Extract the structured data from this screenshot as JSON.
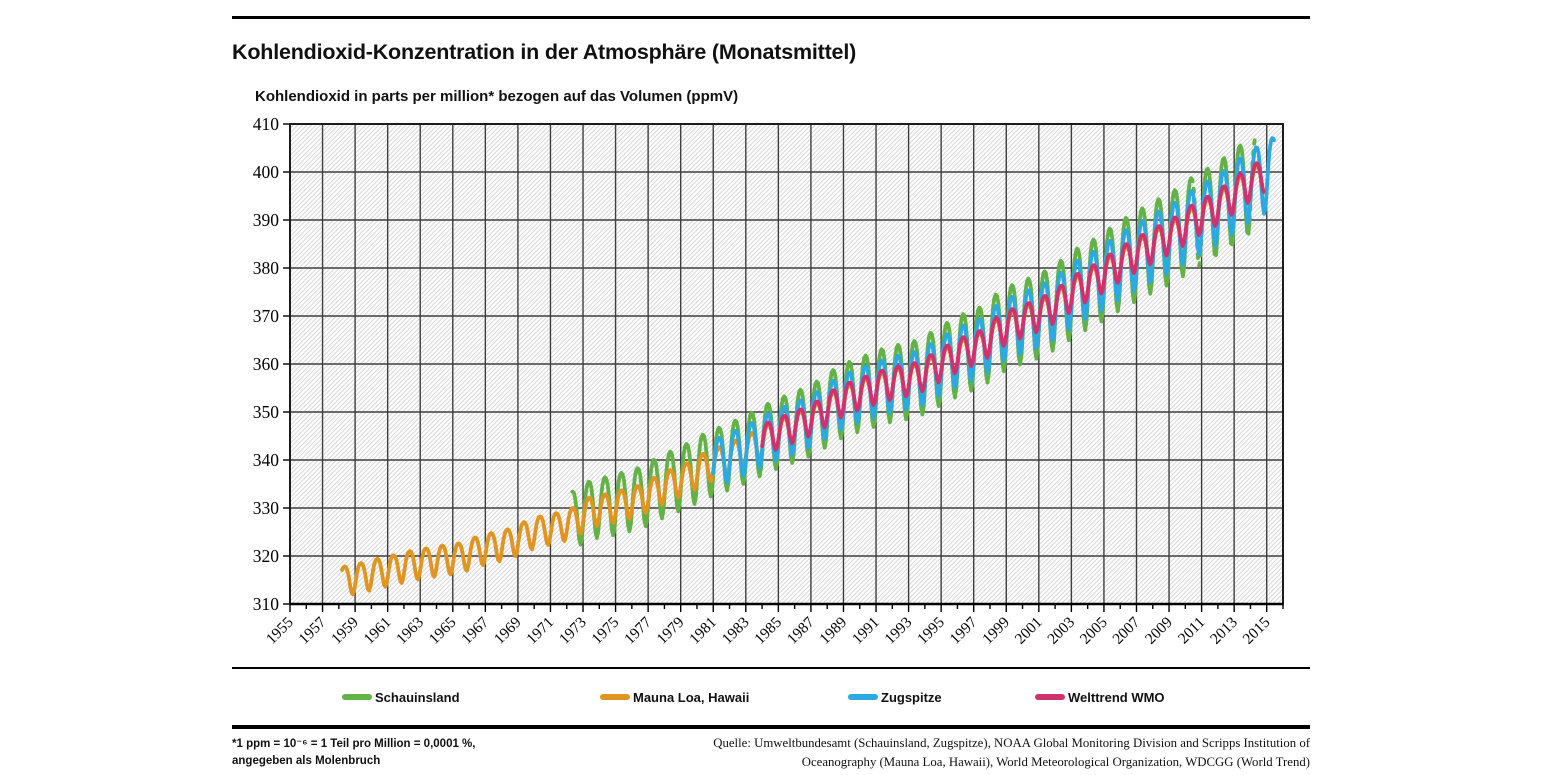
{
  "page": {
    "title": "Kohlendioxid-Konzentration in der Atmosphäre (Monatsmittel)",
    "subtitle": "Kohlendioxid in parts per million* bezogen auf das Volumen (ppmV)",
    "footnote_line1": "*1 ppm = 10⁻⁶ = 1 Teil pro Million = 0,0001 %,",
    "footnote_line2": "angegeben als Molenbruch",
    "source_line1": "Quelle: Umweltbundesamt (Schauinsland, Zugspitze), NOAA Global Monitoring Division and Scripps Institution of",
    "source_line2": "Oceanography  (Mauna Loa, Hawaii), World Meteorological Organization, WDCGG (World Trend)"
  },
  "chart_data": {
    "type": "line",
    "title": "Kohlendioxid-Konzentration in der Atmosphäre (Monatsmittel)",
    "ylabel": "Kohlendioxid in parts per million* bezogen auf das Volumen (ppmV)",
    "xlabel": "",
    "ylim": [
      310,
      410
    ],
    "xlim": [
      1955,
      2016
    ],
    "yticks": [
      310,
      320,
      330,
      340,
      350,
      360,
      370,
      380,
      390,
      400,
      410
    ],
    "xticks": [
      1955,
      1957,
      1959,
      1961,
      1963,
      1965,
      1967,
      1969,
      1971,
      1973,
      1975,
      1977,
      1979,
      1981,
      1983,
      1985,
      1987,
      1989,
      1991,
      1993,
      1995,
      1997,
      1999,
      2001,
      2003,
      2005,
      2007,
      2009,
      2011,
      2013,
      2015
    ],
    "grid": "major gridlines both axes, hatched plot background",
    "legend_position": "bottom",
    "resolution": "monthly means; annual_mean values listed per calendar year, seasonal cycle peaks in spring and dips in autumn with seasonal_amplitude (half peak-to-trough, ppm) interpolated from first to last value",
    "series": [
      {
        "name": "Schauinsland",
        "color": "#63b245",
        "start": 1972.35,
        "end": 2014.4,
        "seasonal_amplitude": [
          6.0,
          10.0
        ],
        "dashed_gaps": [
          [
            2010.35,
            2011.05
          ],
          [
            2013.95,
            2014.4
          ]
        ],
        "annual_mean": [
          [
            1972,
            328.6
          ],
          [
            1973,
            330.6
          ],
          [
            1974,
            331.2
          ],
          [
            1975,
            332.1
          ],
          [
            1976,
            333.0
          ],
          [
            1977,
            334.8
          ],
          [
            1978,
            336.4
          ],
          [
            1979,
            337.9
          ],
          [
            1980,
            339.8
          ],
          [
            1981,
            341.1
          ],
          [
            1982,
            342.5
          ],
          [
            1983,
            344.1
          ],
          [
            1984,
            345.9
          ],
          [
            1985,
            347.3
          ],
          [
            1986,
            348.6
          ],
          [
            1987,
            350.3
          ],
          [
            1988,
            352.7
          ],
          [
            1989,
            354.2
          ],
          [
            1990,
            355.4
          ],
          [
            1991,
            356.6
          ],
          [
            1992,
            357.4
          ],
          [
            1993,
            358.1
          ],
          [
            1994,
            359.9
          ],
          [
            1995,
            361.9
          ],
          [
            1996,
            363.6
          ],
          [
            1997,
            364.8
          ],
          [
            1998,
            367.7
          ],
          [
            1999,
            369.4
          ],
          [
            2000,
            370.6
          ],
          [
            2001,
            372.1
          ],
          [
            2002,
            374.3
          ],
          [
            2003,
            376.8
          ],
          [
            2004,
            378.5
          ],
          [
            2005,
            380.8
          ],
          [
            2006,
            382.9
          ],
          [
            2007,
            384.8
          ],
          [
            2008,
            386.6
          ],
          [
            2009,
            388.4
          ],
          [
            2010,
            390.9
          ],
          [
            2011,
            392.7
          ],
          [
            2012,
            394.9
          ],
          [
            2013,
            397.5
          ],
          [
            2014,
            399.5
          ]
        ]
      },
      {
        "name": "Mauna Loa, Hawaii",
        "color": "#df951f",
        "start": 1958.2,
        "end": 2014.8,
        "seasonal_amplitude": [
          3.1,
          3.4
        ],
        "annual_mean": [
          [
            1958,
            315.3
          ],
          [
            1959,
            316.0
          ],
          [
            1960,
            316.9
          ],
          [
            1961,
            317.6
          ],
          [
            1962,
            318.5
          ],
          [
            1963,
            319.0
          ],
          [
            1964,
            319.6
          ],
          [
            1965,
            320.0
          ],
          [
            1966,
            321.4
          ],
          [
            1967,
            322.2
          ],
          [
            1968,
            323.0
          ],
          [
            1969,
            324.6
          ],
          [
            1970,
            325.7
          ],
          [
            1971,
            326.3
          ],
          [
            1972,
            327.5
          ],
          [
            1973,
            329.7
          ],
          [
            1974,
            330.2
          ],
          [
            1975,
            331.1
          ],
          [
            1976,
            332.0
          ],
          [
            1977,
            333.8
          ],
          [
            1978,
            335.4
          ],
          [
            1979,
            336.8
          ],
          [
            1980,
            338.8
          ],
          [
            1981,
            340.1
          ],
          [
            1982,
            341.5
          ],
          [
            1983,
            343.1
          ],
          [
            1984,
            344.9
          ],
          [
            1985,
            346.3
          ],
          [
            1986,
            347.6
          ],
          [
            1987,
            349.3
          ],
          [
            1988,
            351.7
          ],
          [
            1989,
            353.2
          ],
          [
            1990,
            354.4
          ],
          [
            1991,
            355.6
          ],
          [
            1992,
            356.4
          ],
          [
            1993,
            357.1
          ],
          [
            1994,
            358.9
          ],
          [
            1995,
            360.9
          ],
          [
            1996,
            362.6
          ],
          [
            1997,
            363.8
          ],
          [
            1998,
            366.7
          ],
          [
            1999,
            368.4
          ],
          [
            2000,
            369.6
          ],
          [
            2001,
            371.1
          ],
          [
            2002,
            373.3
          ],
          [
            2003,
            375.8
          ],
          [
            2004,
            377.5
          ],
          [
            2005,
            379.8
          ],
          [
            2006,
            381.9
          ],
          [
            2007,
            383.8
          ],
          [
            2008,
            385.6
          ],
          [
            2009,
            387.4
          ],
          [
            2010,
            389.9
          ],
          [
            2011,
            391.7
          ],
          [
            2012,
            393.9
          ],
          [
            2013,
            396.5
          ],
          [
            2014,
            398.7
          ]
        ]
      },
      {
        "name": "Zugspitze",
        "color": "#2ca9e1",
        "start": 1981.0,
        "end": 2015.45,
        "seasonal_amplitude": [
          5.0,
          7.5
        ],
        "annual_mean": [
          [
            1981,
            340.6
          ],
          [
            1982,
            342.0
          ],
          [
            1983,
            343.6
          ],
          [
            1984,
            345.4
          ],
          [
            1985,
            346.8
          ],
          [
            1986,
            348.1
          ],
          [
            1987,
            349.8
          ],
          [
            1988,
            352.2
          ],
          [
            1989,
            353.7
          ],
          [
            1990,
            354.9
          ],
          [
            1991,
            356.1
          ],
          [
            1992,
            356.9
          ],
          [
            1993,
            357.6
          ],
          [
            1994,
            359.4
          ],
          [
            1995,
            361.4
          ],
          [
            1996,
            363.1
          ],
          [
            1997,
            364.3
          ],
          [
            1998,
            367.2
          ],
          [
            1999,
            368.9
          ],
          [
            2000,
            370.1
          ],
          [
            2001,
            371.6
          ],
          [
            2002,
            373.8
          ],
          [
            2003,
            376.3
          ],
          [
            2004,
            378.0
          ],
          [
            2005,
            380.3
          ],
          [
            2006,
            382.4
          ],
          [
            2007,
            384.3
          ],
          [
            2008,
            386.1
          ],
          [
            2009,
            387.9
          ],
          [
            2010,
            390.4
          ],
          [
            2011,
            392.2
          ],
          [
            2012,
            394.4
          ],
          [
            2013,
            397.0
          ],
          [
            2014,
            399.2
          ],
          [
            2015,
            401.0
          ]
        ]
      },
      {
        "name": "Welttrend WMO",
        "color": "#d1326e",
        "start": 1984.0,
        "end": 2014.8,
        "seasonal_amplitude": [
          3.2,
          3.6
        ],
        "annual_mean": [
          [
            1984,
            345.3
          ],
          [
            1985,
            346.7
          ],
          [
            1986,
            348.0
          ],
          [
            1987,
            349.7
          ],
          [
            1988,
            352.1
          ],
          [
            1989,
            353.6
          ],
          [
            1990,
            354.8
          ],
          [
            1991,
            356.0
          ],
          [
            1992,
            356.8
          ],
          [
            1993,
            357.5
          ],
          [
            1994,
            359.3
          ],
          [
            1995,
            361.3
          ],
          [
            1996,
            363.0
          ],
          [
            1997,
            364.2
          ],
          [
            1998,
            367.1
          ],
          [
            1999,
            368.8
          ],
          [
            2000,
            370.0
          ],
          [
            2001,
            371.5
          ],
          [
            2002,
            373.7
          ],
          [
            2003,
            376.2
          ],
          [
            2004,
            377.9
          ],
          [
            2005,
            380.2
          ],
          [
            2006,
            382.3
          ],
          [
            2007,
            384.2
          ],
          [
            2008,
            386.0
          ],
          [
            2009,
            387.8
          ],
          [
            2010,
            390.3
          ],
          [
            2011,
            392.1
          ],
          [
            2012,
            394.3
          ],
          [
            2013,
            396.9
          ],
          [
            2014,
            399.1
          ]
        ]
      }
    ]
  }
}
